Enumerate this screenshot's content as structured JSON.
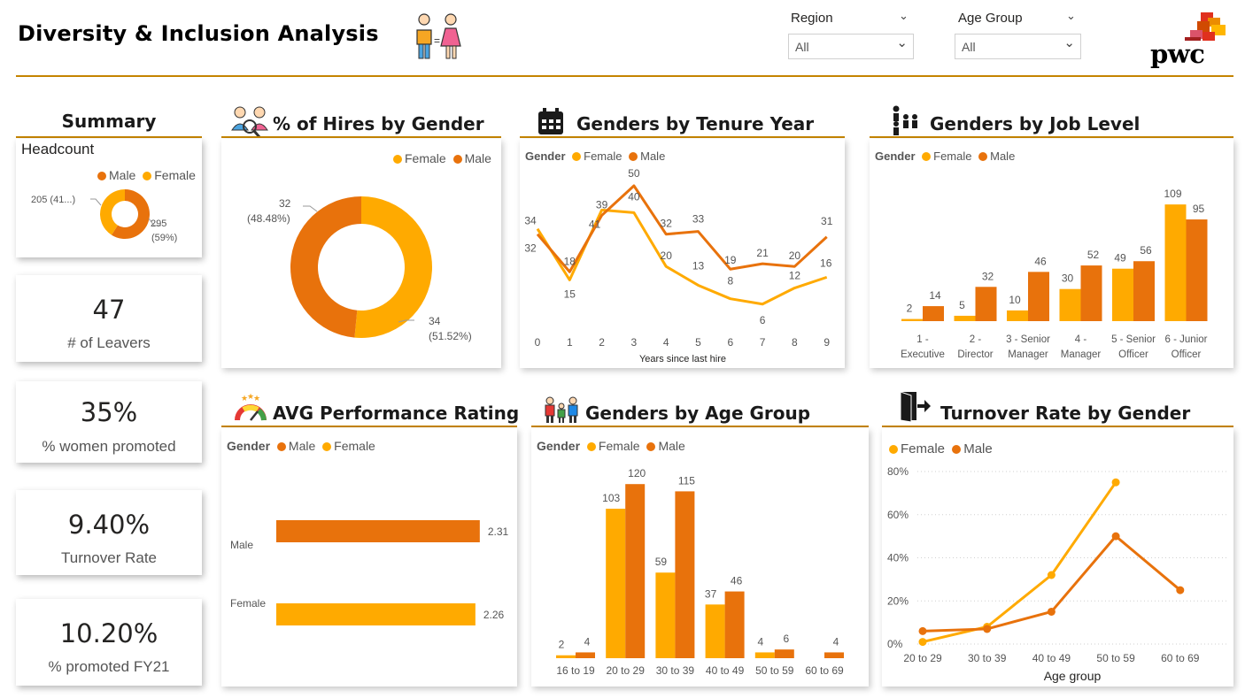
{
  "header": {
    "title": "Diversity & Inclusion Analysis",
    "brand": "pwc",
    "slicers": [
      {
        "label": "Region",
        "value": "All"
      },
      {
        "label": "Age Group",
        "value": "All"
      }
    ]
  },
  "colors": {
    "female": "#FFAA00",
    "male": "#E8720C",
    "rule": "#C58400"
  },
  "summary": {
    "title": "Summary",
    "headcount_label": "Headcount",
    "legend": [
      "Male",
      "Female"
    ],
    "female_label_1": "205 (41...)",
    "male_label_1": "295",
    "male_label_2": "(59%)"
  },
  "kpis": [
    {
      "value": "47",
      "label": "# of Leavers"
    },
    {
      "value": "35%",
      "label": "% women promoted"
    },
    {
      "value": "9.40%",
      "label": "Turnover Rate"
    },
    {
      "value": "10.20%",
      "label": "% promoted FY21"
    }
  ],
  "panels": {
    "hires": {
      "title": "% of Hires by Gender",
      "legend": [
        "Female",
        "Male"
      ]
    },
    "tenure": {
      "title": "Genders by Tenure Year",
      "legend_title": "Gender",
      "legend": [
        "Female",
        "Male"
      ]
    },
    "joblevel": {
      "title": "Genders by Job Level",
      "legend_title": "Gender",
      "legend": [
        "Female",
        "Male"
      ]
    },
    "performance": {
      "title": "AVG Performance Rating",
      "legend_title": "Gender",
      "legend": [
        "Male",
        "Female"
      ]
    },
    "agegroup": {
      "title": "Genders by Age Group",
      "legend_title": "Gender",
      "legend": [
        "Female",
        "Male"
      ]
    },
    "turnover": {
      "title": "Turnover Rate by Gender",
      "legend": [
        "Female",
        "Male"
      ]
    }
  },
  "chart_data": [
    {
      "id": "headcount",
      "type": "pie",
      "title": "Headcount",
      "slices": [
        {
          "name": "Male",
          "value": 295
        },
        {
          "name": "Female",
          "value": 205
        }
      ]
    },
    {
      "id": "hires",
      "type": "pie",
      "title": "% of Hires by Gender",
      "slices": [
        {
          "name": "Female",
          "value": 34,
          "label1": "34",
          "label2": "(51.52%)"
        },
        {
          "name": "Male",
          "value": 32,
          "label1": "32",
          "label2": "(48.48%)"
        }
      ]
    },
    {
      "id": "tenure",
      "type": "line",
      "title": "Genders by Tenure Year",
      "xlabel": "Years since last hire",
      "x": [
        "0",
        "1",
        "2",
        "3",
        "4",
        "5",
        "6",
        "7",
        "8",
        "9"
      ],
      "ylim": [
        0,
        55
      ],
      "series": [
        {
          "name": "Female",
          "values": [
            34,
            15,
            41,
            40,
            20,
            13,
            8,
            6,
            12,
            16
          ]
        },
        {
          "name": "Male",
          "values": [
            32,
            18,
            39,
            50,
            32,
            33,
            19,
            21,
            20,
            31
          ]
        }
      ]
    },
    {
      "id": "joblevel",
      "type": "bar",
      "title": "Genders by Job Level",
      "categories": [
        [
          "1 -",
          "Executive"
        ],
        [
          "2 -",
          "Director"
        ],
        [
          "3 - Senior",
          "Manager"
        ],
        [
          "4 -",
          "Manager"
        ],
        [
          "5 - Senior",
          "Officer"
        ],
        [
          "6 - Junior",
          "Officer"
        ]
      ],
      "ylim": [
        0,
        120
      ],
      "series": [
        {
          "name": "Female",
          "values": [
            2,
            5,
            10,
            30,
            49,
            109
          ]
        },
        {
          "name": "Male",
          "values": [
            14,
            32,
            46,
            52,
            56,
            95
          ]
        }
      ]
    },
    {
      "id": "performance",
      "type": "bar",
      "orientation": "horizontal",
      "title": "AVG Performance Rating",
      "categories": [
        "Male",
        "Female"
      ],
      "values": [
        2.31,
        2.26
      ],
      "value_labels": [
        "2.31",
        "2.26"
      ],
      "xlim": [
        0,
        2.6
      ]
    },
    {
      "id": "agegroup",
      "type": "bar",
      "title": "Genders by Age Group",
      "categories": [
        "16 to 19",
        "20 to 29",
        "30 to 39",
        "40 to 49",
        "50 to 59",
        "60 to 69"
      ],
      "ylim": [
        0,
        130
      ],
      "series": [
        {
          "name": "Female",
          "values": [
            2,
            103,
            59,
            37,
            4,
            null
          ]
        },
        {
          "name": "Male",
          "values": [
            4,
            120,
            115,
            46,
            6,
            4
          ]
        }
      ]
    },
    {
      "id": "turnover",
      "type": "line",
      "title": "Turnover Rate by Gender",
      "xlabel": "Age group",
      "x": [
        "20 to 29",
        "30 to 39",
        "40 to 49",
        "50 to 59",
        "60 to 69"
      ],
      "yticks": [
        "0%",
        "20%",
        "40%",
        "60%",
        "80%"
      ],
      "ylim": [
        0,
        0.8
      ],
      "grid": true,
      "series": [
        {
          "name": "Female",
          "values": [
            0.01,
            0.08,
            0.32,
            0.75,
            null
          ]
        },
        {
          "name": "Male",
          "values": [
            0.06,
            0.07,
            0.15,
            0.5,
            0.25
          ]
        }
      ]
    }
  ]
}
